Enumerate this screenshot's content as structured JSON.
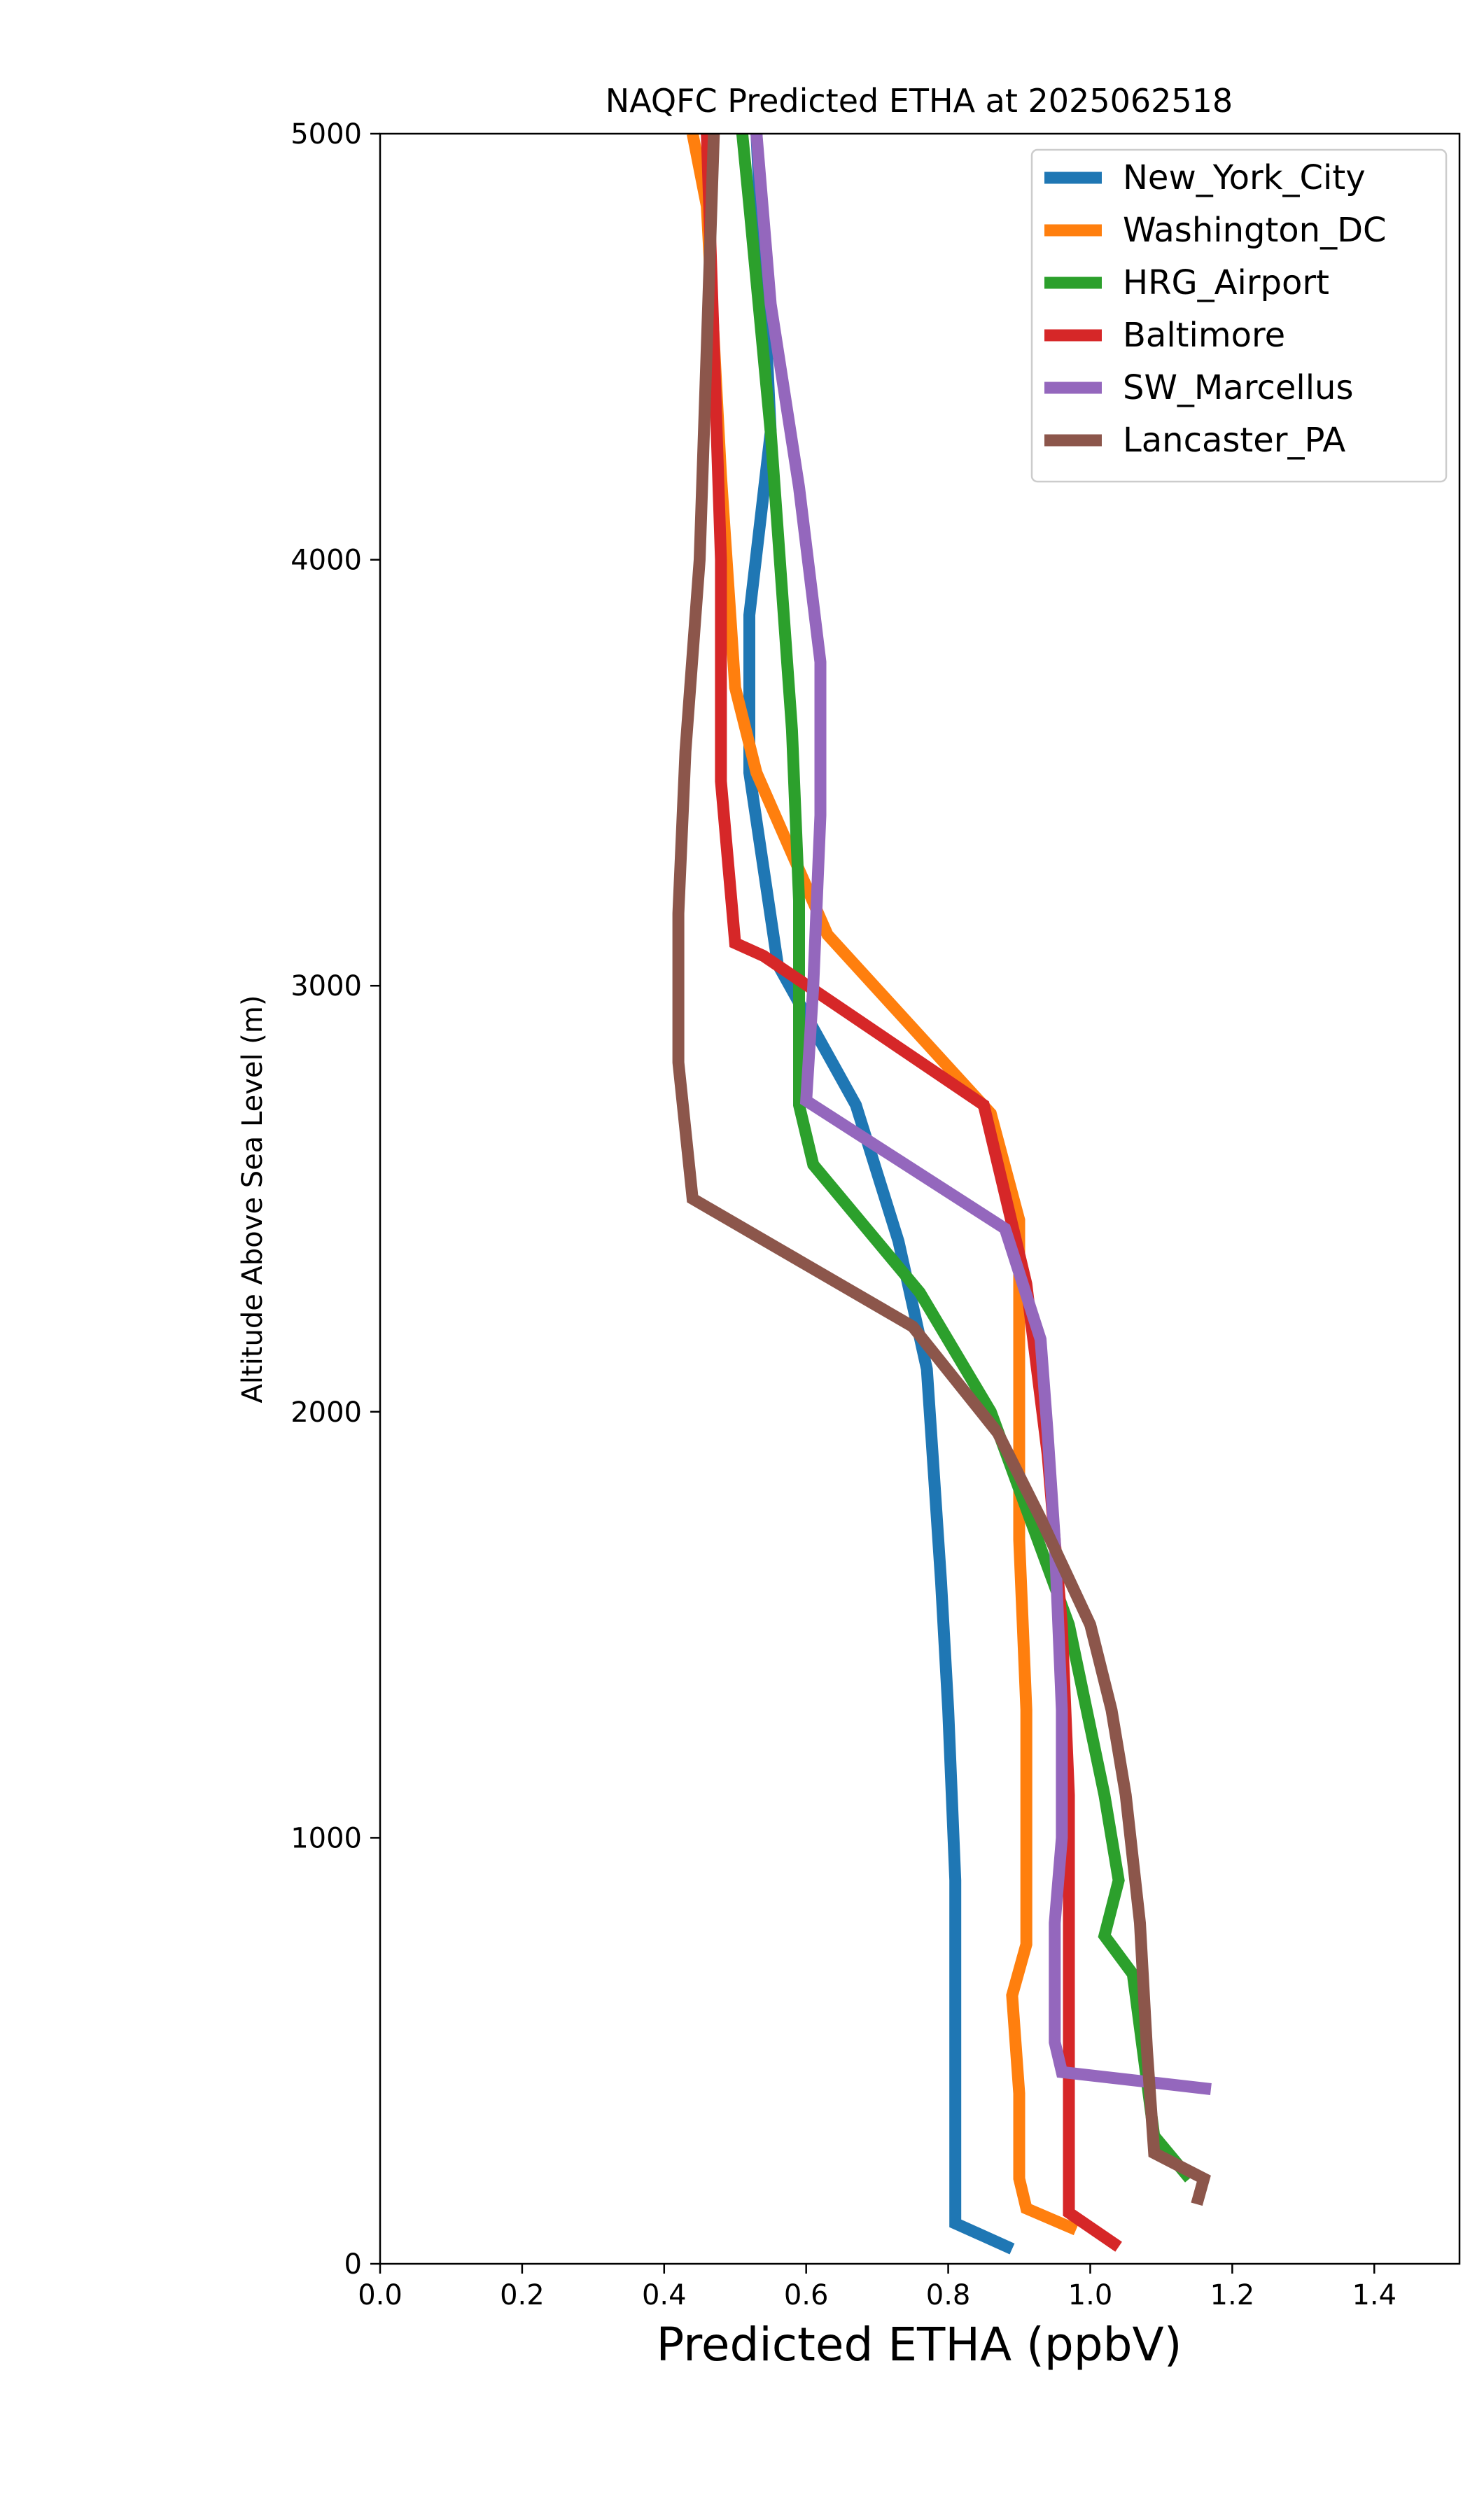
{
  "chart_data": {
    "type": "line",
    "title": "NAQFC Predicted ETHA at 2025062518",
    "xlabel": "Predicted ETHA (ppbV)",
    "ylabel": "Altitude Above Sea Level (m)",
    "xlim": [
      0,
      1.52
    ],
    "ylim": [
      0,
      5000
    ],
    "xticks": [
      "0.0",
      "0.2",
      "0.4",
      "0.6",
      "0.8",
      "1.0",
      "1.2",
      "1.4"
    ],
    "yticks": [
      "0",
      "1000",
      "2000",
      "3000",
      "4000",
      "5000"
    ],
    "legend_position": "top-right",
    "grid": false,
    "series": [
      {
        "name": "New_York_City",
        "color": "#1f77b4",
        "points": [
          [
            0.89,
            35
          ],
          [
            0.81,
            95
          ],
          [
            0.81,
            170
          ],
          [
            0.81,
            270
          ],
          [
            0.81,
            420
          ],
          [
            0.81,
            650
          ],
          [
            0.81,
            900
          ],
          [
            0.8,
            1300
          ],
          [
            0.79,
            1600
          ],
          [
            0.78,
            1850
          ],
          [
            0.77,
            2100
          ],
          [
            0.73,
            2400
          ],
          [
            0.67,
            2720
          ],
          [
            0.56,
            3050
          ],
          [
            0.52,
            3500
          ],
          [
            0.52,
            3870
          ],
          [
            0.55,
            4300
          ],
          [
            0.53,
            5000
          ]
        ]
      },
      {
        "name": "Washington_DC",
        "color": "#ff7f0e",
        "points": [
          [
            0.98,
            80
          ],
          [
            0.91,
            130
          ],
          [
            0.9,
            200
          ],
          [
            0.9,
            400
          ],
          [
            0.89,
            630
          ],
          [
            0.91,
            750
          ],
          [
            0.91,
            1000
          ],
          [
            0.91,
            1300
          ],
          [
            0.9,
            1700
          ],
          [
            0.9,
            2000
          ],
          [
            0.9,
            2200
          ],
          [
            0.9,
            2450
          ],
          [
            0.86,
            2700
          ],
          [
            0.63,
            3120
          ],
          [
            0.53,
            3500
          ],
          [
            0.5,
            3700
          ],
          [
            0.48,
            4200
          ],
          [
            0.46,
            4830
          ],
          [
            0.44,
            5000
          ]
        ]
      },
      {
        "name": "HRG_Airport",
        "color": "#2ca02c",
        "points": [
          [
            1.14,
            200
          ],
          [
            1.09,
            300
          ],
          [
            1.06,
            680
          ],
          [
            1.02,
            770
          ],
          [
            1.04,
            900
          ],
          [
            1.02,
            1100
          ],
          [
            0.97,
            1500
          ],
          [
            0.86,
            2000
          ],
          [
            0.76,
            2280
          ],
          [
            0.61,
            2580
          ],
          [
            0.59,
            2720
          ],
          [
            0.59,
            3000
          ],
          [
            0.59,
            3200
          ],
          [
            0.58,
            3600
          ],
          [
            0.55,
            4300
          ],
          [
            0.52,
            4830
          ],
          [
            0.51,
            5000
          ]
        ]
      },
      {
        "name": "Baltimore",
        "color": "#d62728",
        "points": [
          [
            1.04,
            40
          ],
          [
            0.97,
            120
          ],
          [
            0.97,
            180
          ],
          [
            0.97,
            500
          ],
          [
            0.97,
            800
          ],
          [
            0.97,
            1100
          ],
          [
            0.96,
            1500
          ],
          [
            0.94,
            1900
          ],
          [
            0.91,
            2300
          ],
          [
            0.85,
            2720
          ],
          [
            0.54,
            3070
          ],
          [
            0.5,
            3100
          ],
          [
            0.48,
            3480
          ],
          [
            0.48,
            4000
          ],
          [
            0.47,
            4500
          ],
          [
            0.46,
            5000
          ]
        ]
      },
      {
        "name": "SW_Marcellus",
        "color": "#9467bd",
        "points": [
          [
            1.17,
            410
          ],
          [
            0.96,
            450
          ],
          [
            0.95,
            520
          ],
          [
            0.95,
            800
          ],
          [
            0.96,
            1000
          ],
          [
            0.96,
            1300
          ],
          [
            0.95,
            1700
          ],
          [
            0.94,
            1950
          ],
          [
            0.93,
            2170
          ],
          [
            0.88,
            2430
          ],
          [
            0.6,
            2730
          ],
          [
            0.61,
            3000
          ],
          [
            0.62,
            3400
          ],
          [
            0.62,
            3760
          ],
          [
            0.59,
            4170
          ],
          [
            0.55,
            4600
          ],
          [
            0.53,
            5000
          ]
        ]
      },
      {
        "name": "Lancaster_PA",
        "color": "#8c564b",
        "points": [
          [
            1.15,
            140
          ],
          [
            1.16,
            200
          ],
          [
            1.09,
            260
          ],
          [
            1.08,
            500
          ],
          [
            1.07,
            800
          ],
          [
            1.05,
            1100
          ],
          [
            1.03,
            1300
          ],
          [
            1.0,
            1500
          ],
          [
            0.93,
            1750
          ],
          [
            0.87,
            1950
          ],
          [
            0.75,
            2200
          ],
          [
            0.44,
            2500
          ],
          [
            0.42,
            2820
          ],
          [
            0.42,
            3170
          ],
          [
            0.43,
            3550
          ],
          [
            0.45,
            4000
          ],
          [
            0.46,
            4500
          ],
          [
            0.47,
            5000
          ]
        ]
      }
    ]
  }
}
